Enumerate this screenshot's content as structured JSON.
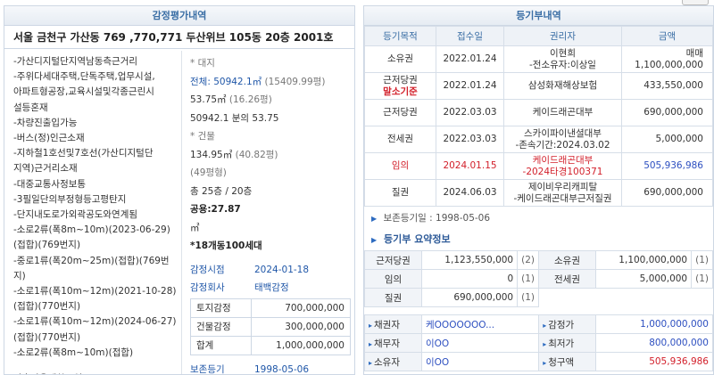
{
  "left": {
    "title": "감정평가내역",
    "address": "서울 금천구 가산동 769 ,770,771 두산위브 105동 20층 2001호",
    "notes": [
      "-가산디지털단지역남동측근거리",
      "-주위다세대주택,단독주택,업무시설,",
      "아파트형공장,교육시설및각종근린시",
      "설등혼재",
      "-차량진출입가능",
      "-버스(정)인근소재",
      "-지하철1호선및7호선(가산디지털단",
      "지역)근거리소재",
      "-대중교통사정보통",
      "-3필일단의부정형등고평탄지",
      "-단지내도로가외곽공도와연계됨",
      "-소로2류(폭8m~10m)(2023-06-29)",
      "(접합)(769번지)",
      "-중로1류(폭20m~25m)(접합)(769번",
      "지)",
      "-소로1류(폭10m~12m)(2021-10-28)",
      "(접합)(770번지)",
      "-소로1류(폭10m~12m)(2024-06-27)",
      "(접합)(770번지)",
      "-소로2류(폭8m~10m)(접합)",
      "",
      "가축사육제한구역"
    ],
    "land": {
      "header": "* 대지",
      "total_label": "전체:",
      "total_value": "50942.1㎡",
      "total_pyeong": "(15409.99평)",
      "share_area": "53.75㎡",
      "share_pyeong": "(16.26평)",
      "share_fraction": "50942.1  분의 53.75"
    },
    "building": {
      "header": "* 건물",
      "area": "134.95㎡",
      "area_pyeong": "(40.82평)",
      "pyeong_class": "(49평형)",
      "floors": "총 25층 / 20층",
      "common": "공용:27.87",
      "common_unit": "㎡",
      "households": "*18개동100세대"
    },
    "appraisal": {
      "date_label": "감정시점",
      "date_value": "2024-01-18",
      "company_label": "감정회사",
      "company_value": "태백감정",
      "rows": [
        {
          "label": "토지감정",
          "value": "700,000,000"
        },
        {
          "label": "건물감정",
          "value": "300,000,000"
        },
        {
          "label": "합계",
          "value": "1,000,000,000"
        }
      ],
      "preserve_label": "보존등기",
      "preserve_value": "1998-05-06"
    }
  },
  "right": {
    "title": "등기부내역",
    "columns": [
      "등기목적",
      "접수일",
      "권리자",
      "금액"
    ],
    "rows": [
      {
        "purpose": "소유권",
        "purpose2": "",
        "date": "2022.01.24",
        "holder": "이현희",
        "holder2": "-전소유자:이상일",
        "amount": "매매1,100,000,000",
        "red": false,
        "blue_amount": false
      },
      {
        "purpose": "근저당권",
        "purpose2": "말소기준",
        "date": "2022.01.24",
        "holder": "삼성화재해상보험",
        "holder2": "",
        "amount": "433,550,000",
        "red": false,
        "blue_amount": false
      },
      {
        "purpose": "근저당권",
        "purpose2": "",
        "date": "2022.03.03",
        "holder": "케이드래곤대부",
        "holder2": "",
        "amount": "690,000,000",
        "red": false,
        "blue_amount": false
      },
      {
        "purpose": "전세권",
        "purpose2": "",
        "date": "2022.03.03",
        "holder": "스카이파이낸셜대부",
        "holder2": "-존속기간:2024.03.02",
        "amount": "5,000,000",
        "red": false,
        "blue_amount": false
      },
      {
        "purpose": "임의",
        "purpose2": "",
        "date": "2024.01.15",
        "holder": "케이드래곤대부",
        "holder2": "-2024타경100371",
        "amount": "505,936,986",
        "red": true,
        "blue_amount": true
      },
      {
        "purpose": "질권",
        "purpose2": "",
        "date": "2024.06.03",
        "holder": "제이비우리캐피탈",
        "holder2": "-케이드래곤대부근저질권",
        "amount": "690,000,000",
        "red": false,
        "blue_amount": false
      }
    ],
    "preserve_note": "보존등기일 : 1998-05-06",
    "summary_title": "등기부 요약정보",
    "summary": [
      {
        "l1": "근저당권",
        "v1": "1,123,550,000",
        "c1": "(2)",
        "l2": "소유권",
        "v2": "1,100,000,000",
        "c2": "(1)"
      },
      {
        "l1": "임의",
        "v1": "0",
        "c1": "(1)",
        "l2": "전세권",
        "v2": "5,000,000",
        "c2": "(1)"
      },
      {
        "l1": "질권",
        "v1": "690,000,000",
        "c1": "(1)",
        "l2": "",
        "v2": "",
        "c2": ""
      }
    ],
    "parties": [
      {
        "l1": "채권자",
        "v1": "케OOOOOOO...",
        "l2": "감정가",
        "v2": "1,000,000,000",
        "red": false
      },
      {
        "l1": "채무자",
        "v1": "이OO",
        "l2": "최저가",
        "v2": "800,000,000",
        "red": false
      },
      {
        "l1": "소유자",
        "v1": "이OO",
        "l2": "청구액",
        "v2": "505,936,986",
        "red": true
      }
    ]
  }
}
